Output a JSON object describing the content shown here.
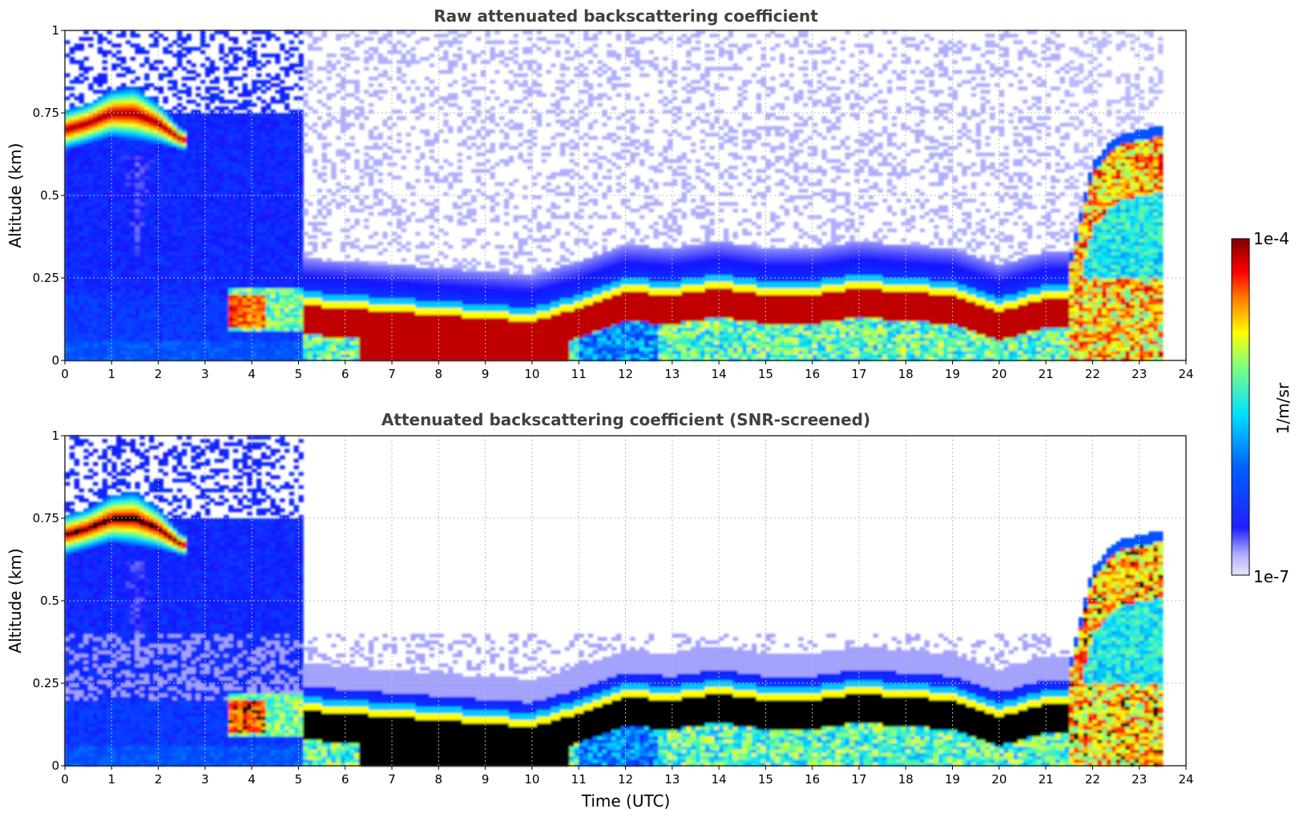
{
  "chart_data": [
    {
      "type": "heatmap",
      "title": "Raw attenuated backscattering coefficient",
      "xlabel": "",
      "ylabel": "Altitude (km)",
      "xlim": [
        0,
        24
      ],
      "ylim": [
        0,
        1
      ],
      "xticks": [
        "0",
        "1",
        "2",
        "3",
        "4",
        "5",
        "6",
        "7",
        "8",
        "9",
        "10",
        "11",
        "12",
        "13",
        "14",
        "15",
        "16",
        "17",
        "18",
        "19",
        "20",
        "21",
        "22",
        "23",
        "24"
      ],
      "yticks": [
        "0",
        "0.25",
        "0.5",
        "0.75",
        "1"
      ],
      "grid": true,
      "data_end_hour": 23.5,
      "layers": [
        {
          "name": "upper-cloud",
          "hours": [
            0,
            0.5,
            1,
            1.5,
            2,
            2.5
          ],
          "top_km": [
            0.76,
            0.78,
            0.82,
            0.83,
            0.78,
            0.7
          ],
          "bottom_km": [
            0.64,
            0.66,
            0.68,
            0.67,
            0.66,
            0.64
          ]
        },
        {
          "name": "boundary-layer-top",
          "hours": [
            5,
            6,
            7,
            8,
            9,
            10,
            11,
            12,
            13,
            14,
            15,
            16,
            17,
            18,
            19,
            20,
            21,
            21.5
          ],
          "top_km": [
            0.23,
            0.22,
            0.21,
            0.2,
            0.19,
            0.18,
            0.22,
            0.27,
            0.26,
            0.28,
            0.26,
            0.26,
            0.28,
            0.27,
            0.26,
            0.21,
            0.25,
            0.25
          ]
        },
        {
          "name": "evening-cloud",
          "hours": [
            21.5,
            22,
            22.5,
            23,
            23.5
          ],
          "top_km": [
            0.3,
            0.6,
            0.68,
            0.7,
            0.71
          ]
        }
      ]
    },
    {
      "type": "heatmap",
      "title": "Attenuated backscattering coefficient (SNR-screened)",
      "xlabel": "Time (UTC)",
      "ylabel": "Altitude (km)",
      "xlim": [
        0,
        24
      ],
      "ylim": [
        0,
        1
      ],
      "xticks": [
        "0",
        "1",
        "2",
        "3",
        "4",
        "5",
        "6",
        "7",
        "8",
        "9",
        "10",
        "11",
        "12",
        "13",
        "14",
        "15",
        "16",
        "17",
        "18",
        "19",
        "20",
        "21",
        "22",
        "23",
        "24"
      ],
      "yticks": [
        "0",
        "0.25",
        "0.5",
        "0.75",
        "1"
      ],
      "grid": true,
      "data_end_hour": 23.5,
      "note_saturated_color": "#000000"
    }
  ],
  "colorbar": {
    "label": "1/m/sr",
    "max_label": "1e-4",
    "min_label": "1e-7",
    "scale": "log",
    "range": [
      1e-07,
      0.0001
    ],
    "colors": [
      "#e6e6fa",
      "#0000ff",
      "#00ffff",
      "#ffff00",
      "#ff0000",
      "#800000"
    ]
  }
}
